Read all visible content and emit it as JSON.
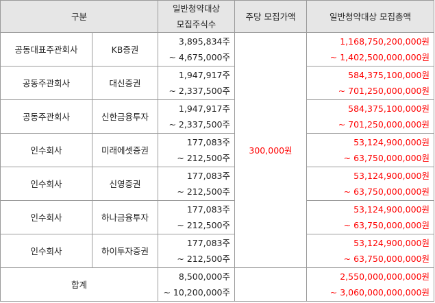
{
  "headers": {
    "category": "구분",
    "shares_line1": "일반청약대상",
    "shares_line2": "모집주식수",
    "price": "주당 모집가액",
    "total": "일반청약대상 모집총액"
  },
  "price_per_share": "300,000원",
  "rows": [
    {
      "role": "공동대표주관회사",
      "firm": "KB증권",
      "shares_min": "3,895,834주",
      "shares_max": "~ 4,675,000주",
      "total_min": "1,168,750,200,000원",
      "total_max": "~ 1,402,500,000,000원"
    },
    {
      "role": "공동주관회사",
      "firm": "대신증권",
      "shares_min": "1,947,917주",
      "shares_max": "~ 2,337,500주",
      "total_min": "584,375,100,000원",
      "total_max": "~ 701,250,000,000원"
    },
    {
      "role": "공동주관회사",
      "firm": "신한금융투자",
      "shares_min": "1,947,917주",
      "shares_max": "~ 2,337,500주",
      "total_min": "584,375,100,000원",
      "total_max": "~ 701,250,000,000원"
    },
    {
      "role": "인수회사",
      "firm": "미래에셋증권",
      "shares_min": "177,083주",
      "shares_max": "~ 212,500주",
      "total_min": "53,124,900,000원",
      "total_max": "~ 63,750,000,000원"
    },
    {
      "role": "인수회사",
      "firm": "신영증권",
      "shares_min": "177,083주",
      "shares_max": "~ 212,500주",
      "total_min": "53,124,900,000원",
      "total_max": "~ 63,750,000,000원"
    },
    {
      "role": "인수회사",
      "firm": "하나금융투자",
      "shares_min": "177,083주",
      "shares_max": "~ 212,500주",
      "total_min": "53,124,900,000원",
      "total_max": "~ 63,750,000,000원"
    },
    {
      "role": "인수회사",
      "firm": "하이투자증권",
      "shares_min": "177,083주",
      "shares_max": "~ 212,500주",
      "total_min": "53,124,900,000원",
      "total_max": "~ 63,750,000,000원"
    }
  ],
  "total_row": {
    "label": "합계",
    "shares_min": "8,500,000주",
    "shares_max": "~ 10,200,000주",
    "total_min": "2,550,000,000,000원",
    "total_max": "~ 3,060,000,000,000원"
  }
}
